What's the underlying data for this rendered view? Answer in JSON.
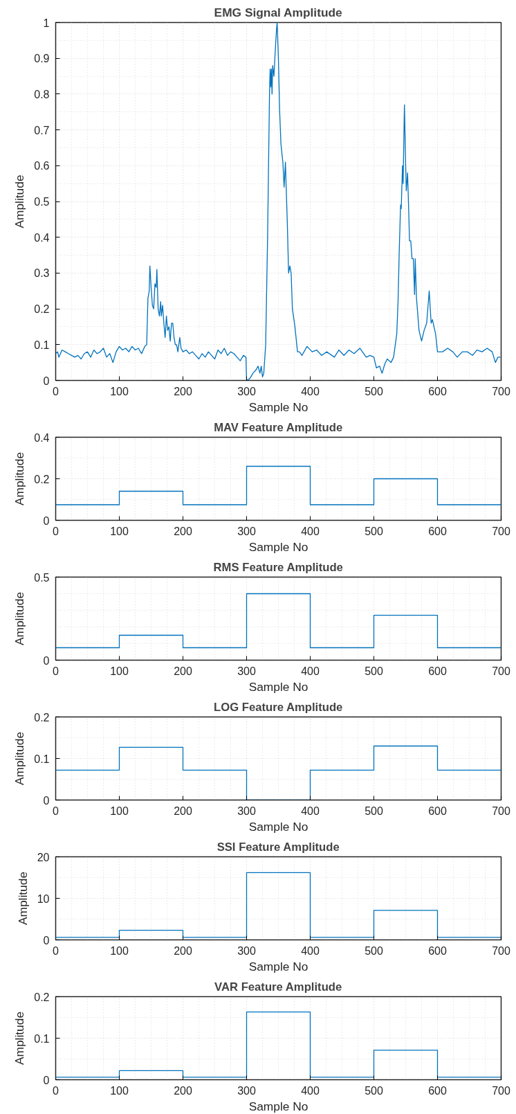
{
  "chart_data": [
    {
      "type": "line",
      "title": "EMG Signal Amplitude",
      "xlabel": "Sample No",
      "ylabel": "Amplitude",
      "xlim": [
        0,
        700
      ],
      "ylim": [
        0,
        1
      ],
      "xticks": [
        0,
        100,
        200,
        300,
        400,
        500,
        600,
        700
      ],
      "yticks": [
        0,
        0.1,
        0.2,
        0.3,
        0.4,
        0.5,
        0.6,
        0.7,
        0.8,
        0.9,
        1
      ],
      "grid": true,
      "series": [
        {
          "color": "#0072bd",
          "x": [
            0,
            3,
            5,
            10,
            15,
            20,
            25,
            30,
            35,
            40,
            45,
            50,
            55,
            60,
            65,
            70,
            75,
            80,
            85,
            90,
            95,
            100,
            105,
            110,
            115,
            120,
            125,
            130,
            135,
            140,
            143,
            145,
            147,
            148,
            150,
            152,
            154,
            156,
            158,
            159,
            161,
            163,
            165,
            166,
            168,
            170,
            172,
            174,
            176,
            178,
            180,
            182,
            184,
            186,
            188,
            190,
            192,
            195,
            197,
            200,
            205,
            210,
            215,
            220,
            225,
            230,
            235,
            240,
            245,
            250,
            255,
            260,
            265,
            270,
            275,
            280,
            285,
            290,
            295,
            299,
            300,
            305,
            310,
            315,
            318,
            321,
            323,
            325,
            327,
            330,
            333,
            336,
            337,
            338,
            339,
            340,
            341,
            343,
            345,
            347,
            348,
            350,
            352,
            354,
            357,
            359,
            361,
            364,
            366,
            368,
            370,
            372,
            376,
            380,
            383,
            387,
            395,
            403,
            410,
            418,
            426,
            438,
            445,
            453,
            461,
            469,
            478,
            488,
            494,
            500,
            504,
            509,
            513,
            517,
            521,
            527,
            531,
            536,
            538,
            540,
            542,
            543,
            545,
            546,
            548,
            550,
            551,
            553,
            555,
            556,
            558,
            560,
            562,
            564,
            565,
            567,
            571,
            575,
            579,
            583,
            587,
            590,
            592,
            597,
            600,
            608,
            616,
            624,
            631,
            639,
            647,
            655,
            662,
            670,
            678,
            686,
            691,
            695,
            699
          ],
          "values": [
            0.075,
            0.08,
            0.065,
            0.085,
            0.08,
            0.075,
            0.07,
            0.065,
            0.07,
            0.06,
            0.075,
            0.08,
            0.065,
            0.085,
            0.075,
            0.08,
            0.09,
            0.065,
            0.075,
            0.05,
            0.08,
            0.095,
            0.085,
            0.09,
            0.08,
            0.095,
            0.085,
            0.09,
            0.075,
            0.095,
            0.1,
            0.23,
            0.25,
            0.32,
            0.26,
            0.21,
            0.2,
            0.27,
            0.26,
            0.31,
            0.2,
            0.18,
            0.22,
            0.18,
            0.21,
            0.16,
            0.12,
            0.18,
            0.14,
            0.15,
            0.11,
            0.16,
            0.16,
            0.12,
            0.1,
            0.1,
            0.08,
            0.12,
            0.09,
            0.08,
            0.085,
            0.075,
            0.08,
            0.07,
            0.06,
            0.075,
            0.065,
            0.08,
            0.07,
            0.06,
            0.085,
            0.075,
            0.09,
            0.07,
            0.08,
            0.075,
            0.065,
            0.055,
            0.07,
            0.065,
            0.0,
            0.005,
            0.02,
            0.03,
            0.04,
            0.02,
            0.04,
            0.01,
            0.02,
            0.1,
            0.4,
            0.8,
            0.87,
            0.82,
            0.87,
            0.8,
            0.88,
            0.85,
            0.92,
            0.98,
            1.0,
            0.9,
            0.75,
            0.66,
            0.61,
            0.54,
            0.61,
            0.44,
            0.3,
            0.32,
            0.3,
            0.2,
            0.15,
            0.08,
            0.08,
            0.07,
            0.095,
            0.08,
            0.085,
            0.07,
            0.08,
            0.065,
            0.085,
            0.07,
            0.085,
            0.075,
            0.09,
            0.065,
            0.07,
            0.065,
            0.035,
            0.04,
            0.02,
            0.045,
            0.06,
            0.05,
            0.065,
            0.13,
            0.22,
            0.37,
            0.49,
            0.48,
            0.6,
            0.55,
            0.77,
            0.6,
            0.53,
            0.58,
            0.46,
            0.39,
            0.39,
            0.34,
            0.34,
            0.24,
            0.34,
            0.23,
            0.14,
            0.11,
            0.14,
            0.16,
            0.25,
            0.16,
            0.17,
            0.13,
            0.08,
            0.08,
            0.09,
            0.08,
            0.065,
            0.08,
            0.08,
            0.07,
            0.085,
            0.08,
            0.09,
            0.08,
            0.05,
            0.065,
            0.065
          ]
        }
      ]
    },
    {
      "type": "step",
      "title": "MAV Feature Amplitude",
      "xlabel": "Sample No",
      "ylabel": "Amplitude",
      "xlim": [
        0,
        700
      ],
      "ylim": [
        0,
        0.4
      ],
      "xticks": [
        0,
        100,
        200,
        300,
        400,
        500,
        600,
        700
      ],
      "yticks": [
        0,
        0.2,
        0.4
      ],
      "grid": true,
      "series": [
        {
          "color": "#0072bd",
          "x": [
            0,
            100,
            200,
            300,
            400,
            500,
            600,
            700
          ],
          "values": [
            0.075,
            0.14,
            0.075,
            0.26,
            0.075,
            0.2,
            0.075,
            0.075
          ]
        }
      ]
    },
    {
      "type": "step",
      "title": "RMS Feature Amplitude",
      "xlabel": "Sample No",
      "ylabel": "Amplitude",
      "xlim": [
        0,
        700
      ],
      "ylim": [
        0,
        0.5
      ],
      "xticks": [
        0,
        100,
        200,
        300,
        400,
        500,
        600,
        700
      ],
      "yticks": [
        0,
        0.5
      ],
      "grid": true,
      "series": [
        {
          "color": "#0072bd",
          "x": [
            0,
            100,
            200,
            300,
            400,
            500,
            600,
            700
          ],
          "values": [
            0.075,
            0.15,
            0.075,
            0.4,
            0.075,
            0.27,
            0.075,
            0.075
          ]
        }
      ]
    },
    {
      "type": "step",
      "title": "LOG Feature Amplitude",
      "xlabel": "Sample No",
      "ylabel": "Amplitude",
      "xlim": [
        0,
        700
      ],
      "ylim": [
        0,
        0.2
      ],
      "xticks": [
        0,
        100,
        200,
        300,
        400,
        500,
        600,
        700
      ],
      "yticks": [
        0,
        0.1,
        0.2
      ],
      "grid": true,
      "series": [
        {
          "color": "#0072bd",
          "x": [
            0,
            100,
            200,
            300,
            400,
            500,
            600,
            700
          ],
          "values": [
            0.072,
            0.127,
            0.072,
            0.0,
            0.072,
            0.13,
            0.072,
            0.072
          ]
        }
      ]
    },
    {
      "type": "step",
      "title": "SSI Feature Amplitude",
      "xlabel": "Sample No",
      "ylabel": "Amplitude",
      "xlim": [
        0,
        700
      ],
      "ylim": [
        0,
        20
      ],
      "xticks": [
        0,
        100,
        200,
        300,
        400,
        500,
        600,
        700
      ],
      "yticks": [
        0,
        10,
        20
      ],
      "grid": true,
      "series": [
        {
          "color": "#0072bd",
          "x": [
            0,
            100,
            200,
            300,
            400,
            500,
            600,
            700
          ],
          "values": [
            0.6,
            2.3,
            0.6,
            16.2,
            0.6,
            7.1,
            0.6,
            0.6
          ]
        }
      ]
    },
    {
      "type": "step",
      "title": "VAR Feature Amplitude",
      "xlabel": "Sample No",
      "ylabel": "Amplitude",
      "xlim": [
        0,
        700
      ],
      "ylim": [
        0,
        0.2
      ],
      "xticks": [
        0,
        100,
        200,
        300,
        400,
        500,
        600,
        700
      ],
      "yticks": [
        0,
        0.1,
        0.2
      ],
      "grid": true,
      "series": [
        {
          "color": "#0072bd",
          "x": [
            0,
            100,
            200,
            300,
            400,
            500,
            600,
            700
          ],
          "values": [
            0.006,
            0.022,
            0.006,
            0.163,
            0.006,
            0.071,
            0.006,
            0.006
          ]
        }
      ]
    }
  ]
}
